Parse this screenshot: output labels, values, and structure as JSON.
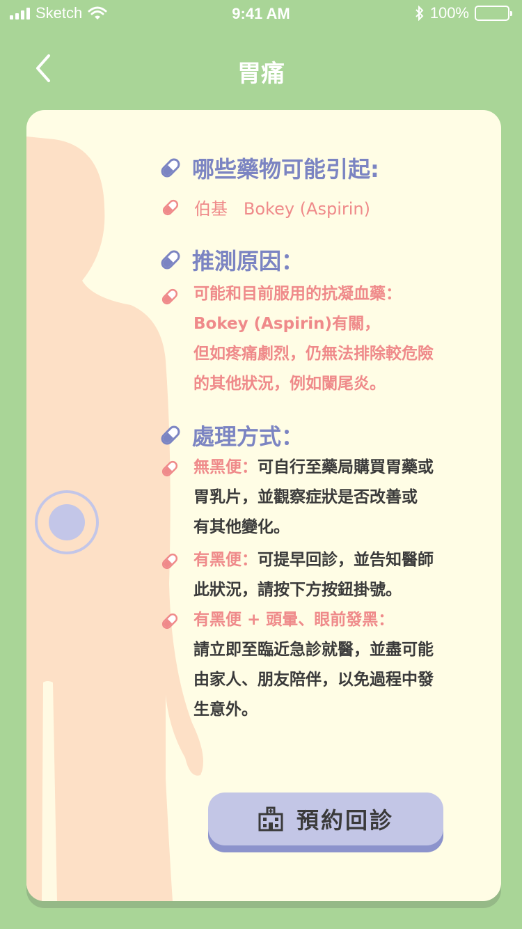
{
  "status_bar": {
    "carrier": "Sketch",
    "time": "9:41 AM",
    "battery": "100%",
    "battery_level": 1.0
  },
  "nav": {
    "title": "胃痛",
    "back_icon": "chevron-left-icon"
  },
  "sections": {
    "drugs": {
      "title": "哪些藥物可能引起:",
      "item": "伯基   Bokey (Aspirin)"
    },
    "cause": {
      "title": "推測原因：",
      "lines": [
        "可能和目前服用的抗凝血藥：",
        "Bokey (Aspirin)有關，",
        "但如疼痛劇烈，仍無法排除較危險",
        "的其他狀況，例如闌尾炎。"
      ]
    },
    "treatment": {
      "title": "處理方式：",
      "items": [
        {
          "label": "無黑便：",
          "first": "可自行至藥局購買胃藥或",
          "rest": [
            "胃乳片，並觀察症狀是否改善或",
            "有其他變化。"
          ]
        },
        {
          "label": "有黑便：",
          "first": "可提早回診，並告知醫師",
          "rest": [
            "此狀況，請按下方按鈕掛號。"
          ]
        },
        {
          "label": "有黑便 + 頭暈、眼前發黑：",
          "first": "",
          "rest": [
            "請立即至臨近急診就醫，並盡可能",
            "由家人、朋友陪伴，以免過程中發",
            "生意外。"
          ]
        }
      ]
    }
  },
  "book_button": {
    "label": "預約回診",
    "icon": "hospital-icon"
  },
  "colors": {
    "background": "#a9d597",
    "card": "#fffde5",
    "body": "#fde0c6",
    "accent_purple": "#7b84c2",
    "accent_pink": "#ef8a8a",
    "button": "#c3c6e6"
  }
}
